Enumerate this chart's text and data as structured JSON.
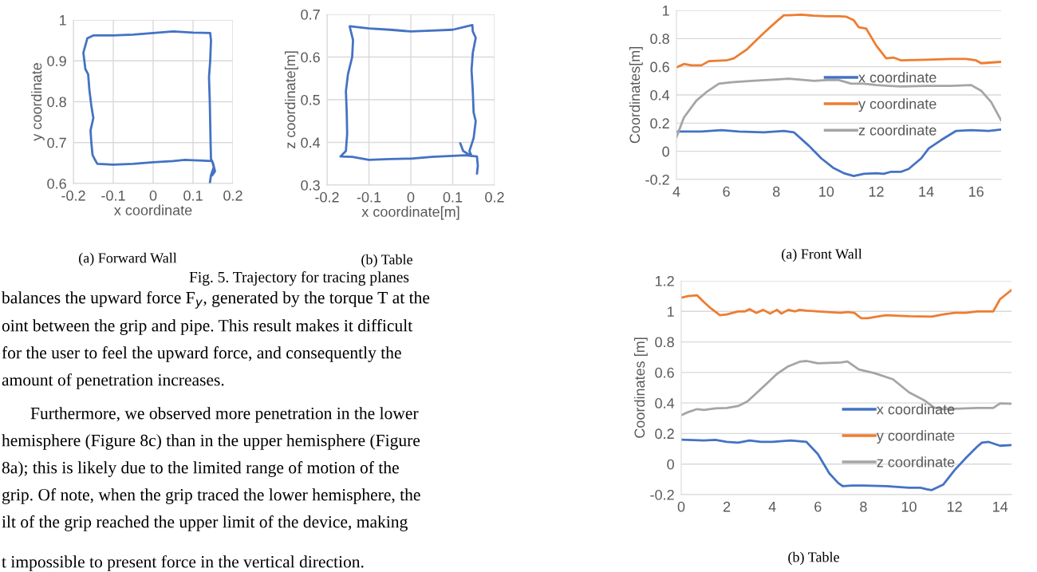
{
  "chart_data": [
    {
      "type": "line",
      "xlabel": "x coordinate",
      "ylabel": "y coordinate",
      "xlim": [
        -0.2,
        0.2
      ],
      "ylim": [
        0.6,
        1
      ],
      "xticks": [
        -0.2,
        -0.1,
        0,
        0.1,
        0.2
      ],
      "yticks": [
        0.6,
        0.7,
        0.8,
        0.9,
        1
      ],
      "grid": true,
      "series": [
        {
          "color": "#4472c4",
          "x": [
            0.142,
            0.145,
            0.152,
            0.148,
            0.1,
            0.08,
            0.05,
            0.0,
            -0.05,
            -0.1,
            -0.14,
            -0.147,
            -0.152,
            -0.155,
            -0.157,
            -0.15,
            -0.155,
            -0.16,
            -0.163,
            -0.17,
            -0.175,
            -0.165,
            -0.15,
            -0.1,
            -0.05,
            0.0,
            0.05,
            0.1,
            0.143,
            0.145,
            0.143,
            0.14,
            0.142,
            0.143,
            0.144,
            0.145,
            0.15,
            0.155,
            0.148
          ],
          "values": [
            0.6,
            0.62,
            0.64,
            0.655,
            0.657,
            0.658,
            0.655,
            0.652,
            0.648,
            0.646,
            0.648,
            0.66,
            0.67,
            0.7,
            0.73,
            0.76,
            0.79,
            0.83,
            0.867,
            0.88,
            0.92,
            0.955,
            0.962,
            0.962,
            0.964,
            0.968,
            0.972,
            0.969,
            0.968,
            0.95,
            0.9,
            0.86,
            0.8,
            0.75,
            0.7,
            0.66,
            0.65,
            0.63,
            0.62
          ]
        }
      ],
      "annotations": [
        "(a) Forward Wall",
        "Fig. 5. Trajectory for tracing planes",
        "balances the upward force F$_{y}$, generated by the torque T at the",
        "oint between the grip and pipe. This result makes it difficult",
        "for the user to feel the upward force, and consequently the",
        "amount of penetration increases.",
        "Furthermore, we observed more penetration in the lower",
        "hemisphere (Figure 8c) than in the upper hemisphere (Figure",
        "8a); this is likely due to the limited range of motion of the",
        "grip. Of note, when the grip traced the lower hemisphere, the",
        "ilt of the grip reached the upper limit of the device, making",
        "t impossible to present force in the vertical direction."
      ]
    },
    {
      "type": "line",
      "xlabel": "x coordinate[m]",
      "ylabel": "z coordinate[m]",
      "xlim": [
        -0.2,
        0.2
      ],
      "ylim": [
        0.3,
        0.7
      ],
      "xticks": [
        -0.2,
        -0.1,
        0,
        0.1,
        0.2
      ],
      "yticks": [
        0.3,
        0.4,
        0.5,
        0.6,
        0.7
      ],
      "grid": true,
      "series": [
        {
          "color": "#4472c4",
          "x": [
            0.158,
            0.16,
            0.158,
            0.13,
            0.05,
            0.0,
            -0.05,
            -0.1,
            -0.14,
            -0.168,
            -0.155,
            -0.152,
            -0.153,
            -0.155,
            -0.15,
            -0.14,
            -0.138,
            -0.146,
            -0.1,
            -0.05,
            0.0,
            0.05,
            0.1,
            0.147,
            0.148,
            0.155,
            0.148,
            0.145,
            0.148,
            0.15,
            0.155,
            0.15,
            0.14,
            0.145,
            0.125,
            0.118
          ],
          "values": [
            0.327,
            0.345,
            0.367,
            0.37,
            0.366,
            0.362,
            0.361,
            0.359,
            0.366,
            0.367,
            0.38,
            0.42,
            0.47,
            0.52,
            0.56,
            0.6,
            0.64,
            0.672,
            0.667,
            0.664,
            0.66,
            0.662,
            0.664,
            0.675,
            0.66,
            0.645,
            0.61,
            0.57,
            0.52,
            0.47,
            0.45,
            0.41,
            0.38,
            0.368,
            0.38,
            0.398
          ]
        }
      ],
      "annotations": [
        "(b) Table"
      ]
    },
    {
      "type": "line",
      "ylabel": "Coordinates[m]",
      "xlim": [
        4,
        17
      ],
      "ylim": [
        -0.2,
        1
      ],
      "xticks": [
        4,
        6,
        8,
        10,
        12,
        14,
        16
      ],
      "yticks": [
        -0.2,
        0,
        0.2,
        0.4,
        0.6,
        0.8,
        1
      ],
      "grid": "y",
      "legend": "center",
      "annotations": [
        "(a) Front Wall"
      ],
      "series": [
        {
          "name": "x coordinate",
          "color": "#4472c4",
          "x": [
            4,
            5,
            5.8,
            6.5,
            7.5,
            8.3,
            8.7,
            9.3,
            9.8,
            10.3,
            10.7,
            11.1,
            11.5,
            12,
            12.3,
            12.6,
            13,
            13.3,
            13.8,
            14.1,
            14.6,
            15.2,
            15.8,
            16.5,
            17
          ],
          "values": [
            0.14,
            0.14,
            0.15,
            0.14,
            0.135,
            0.145,
            0.135,
            0.04,
            -0.05,
            -0.12,
            -0.155,
            -0.175,
            -0.16,
            -0.155,
            -0.16,
            -0.145,
            -0.145,
            -0.125,
            -0.05,
            0.02,
            0.08,
            0.145,
            0.15,
            0.145,
            0.155
          ]
        },
        {
          "name": "y coordinate",
          "color": "#ed7d31",
          "x": [
            4,
            4.3,
            4.6,
            5,
            5.3,
            6,
            6.3,
            6.8,
            7.5,
            8,
            8.3,
            8.5,
            9,
            9.5,
            10,
            10.5,
            10.8,
            11.1,
            11.3,
            11.6,
            12,
            12.4,
            12.7,
            13,
            14,
            15,
            15.6,
            16,
            16.2,
            17
          ],
          "values": [
            0.595,
            0.62,
            0.61,
            0.61,
            0.64,
            0.645,
            0.66,
            0.72,
            0.84,
            0.92,
            0.965,
            0.965,
            0.97,
            0.962,
            0.958,
            0.958,
            0.955,
            0.93,
            0.88,
            0.87,
            0.75,
            0.66,
            0.665,
            0.645,
            0.65,
            0.655,
            0.655,
            0.645,
            0.625,
            0.635
          ]
        },
        {
          "name": "z coordinate",
          "color": "#a5a5a5",
          "x": [
            4,
            4.3,
            4.8,
            5.2,
            5.7,
            6.2,
            7,
            8,
            8.5,
            9.5,
            10,
            10.5,
            11,
            11.5,
            12,
            12.5,
            13,
            14,
            15,
            15.8,
            16.2,
            16.6,
            17
          ],
          "values": [
            0.1,
            0.24,
            0.36,
            0.42,
            0.48,
            0.49,
            0.5,
            0.51,
            0.515,
            0.5,
            0.505,
            0.505,
            0.48,
            0.48,
            0.47,
            0.465,
            0.46,
            0.465,
            0.465,
            0.47,
            0.43,
            0.35,
            0.22
          ]
        }
      ]
    },
    {
      "type": "line",
      "ylabel": "Coordinates [m]",
      "xlim": [
        0,
        14.5
      ],
      "ylim": [
        -0.2,
        1.2
      ],
      "xticks": [
        0,
        2,
        4,
        6,
        8,
        10,
        12,
        14
      ],
      "yticks": [
        -0.2,
        0,
        0.2,
        0.4,
        0.6,
        0.8,
        1,
        1.2
      ],
      "grid": "y",
      "legend": "center",
      "annotations": [
        "(b) Table"
      ],
      "series": [
        {
          "name": "x coordinate",
          "color": "#4472c4",
          "x": [
            0,
            1,
            1.5,
            2,
            2.5,
            3,
            3.5,
            4,
            4.8,
            5.5,
            6,
            6.5,
            6.9,
            7.1,
            7.5,
            8,
            9,
            10,
            10.5,
            10.8,
            11,
            11.5,
            12,
            12.5,
            13,
            13.2,
            13.5,
            14,
            14.5
          ],
          "values": [
            0.16,
            0.155,
            0.158,
            0.145,
            0.14,
            0.155,
            0.145,
            0.145,
            0.155,
            0.145,
            0.065,
            -0.06,
            -0.125,
            -0.145,
            -0.14,
            -0.14,
            -0.145,
            -0.155,
            -0.155,
            -0.165,
            -0.17,
            -0.135,
            -0.04,
            0.04,
            0.115,
            0.14,
            0.145,
            0.12,
            0.125
          ]
        },
        {
          "name": "y coordinate",
          "color": "#ed7d31",
          "x": [
            0,
            0.3,
            0.7,
            1,
            1.3,
            1.7,
            2,
            2.5,
            2.8,
            3,
            3.3,
            3.6,
            3.9,
            4.2,
            4.4,
            4.7,
            5,
            5.2,
            5.5,
            6,
            7,
            7.3,
            7.6,
            7.9,
            8.2,
            8.6,
            9,
            10,
            11,
            11.5,
            12,
            12.5,
            13,
            13.7,
            14,
            14.5
          ],
          "values": [
            1.09,
            1.1,
            1.105,
            1.06,
            1.02,
            0.975,
            0.98,
            1.0,
            1.0,
            1.015,
            0.99,
            1.01,
            0.985,
            1.01,
            0.985,
            1.01,
            1.0,
            1.01,
            1.005,
            1.0,
            0.99,
            0.995,
            0.99,
            0.955,
            0.955,
            0.965,
            0.975,
            0.968,
            0.965,
            0.98,
            0.99,
            0.99,
            1.0,
            1.0,
            1.08,
            1.14
          ]
        },
        {
          "name": "z coordinate",
          "color": "#a5a5a5",
          "x": [
            0,
            0.3,
            0.7,
            1,
            1.5,
            2,
            2.5,
            2.9,
            3.2,
            3.7,
            4.2,
            4.7,
            5.2,
            5.5,
            6,
            7,
            7.3,
            7.8,
            8.5,
            9.3,
            10,
            10.7,
            11.1,
            11.5,
            12,
            13,
            13.7,
            14,
            14.5
          ],
          "values": [
            0.32,
            0.34,
            0.36,
            0.355,
            0.365,
            0.367,
            0.38,
            0.41,
            0.45,
            0.52,
            0.59,
            0.64,
            0.67,
            0.675,
            0.66,
            0.665,
            0.672,
            0.62,
            0.595,
            0.555,
            0.47,
            0.415,
            0.37,
            0.36,
            0.362,
            0.367,
            0.367,
            0.398,
            0.395
          ]
        }
      ]
    }
  ]
}
